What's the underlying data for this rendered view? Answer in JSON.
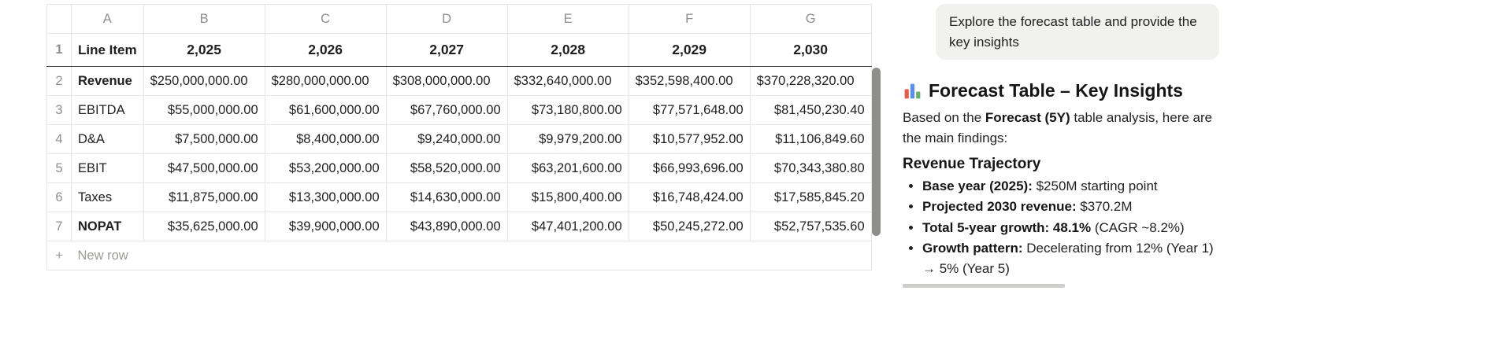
{
  "spreadsheet": {
    "column_letters": [
      "A",
      "B",
      "C",
      "D",
      "E",
      "F",
      "G"
    ],
    "rows": [
      {
        "num": "1",
        "cells": [
          "Line Item",
          "2,025",
          "2,026",
          "2,027",
          "2,028",
          "2,029",
          "2,030"
        ]
      },
      {
        "num": "2",
        "cells": [
          "Revenue",
          "$250,000,000.00",
          "$280,000,000.00",
          "$308,000,000.00",
          "$332,640,000.00",
          "$352,598,400.00",
          "$370,228,320.00"
        ]
      },
      {
        "num": "3",
        "cells": [
          "EBITDA",
          "$55,000,000.00",
          "$61,600,000.00",
          "$67,760,000.00",
          "$73,180,800.00",
          "$77,571,648.00",
          "$81,450,230.40"
        ]
      },
      {
        "num": "4",
        "cells": [
          "D&A",
          "$7,500,000.00",
          "$8,400,000.00",
          "$9,240,000.00",
          "$9,979,200.00",
          "$10,577,952.00",
          "$11,106,849.60"
        ]
      },
      {
        "num": "5",
        "cells": [
          "EBIT",
          "$47,500,000.00",
          "$53,200,000.00",
          "$58,520,000.00",
          "$63,201,600.00",
          "$66,993,696.00",
          "$70,343,380.80"
        ]
      },
      {
        "num": "6",
        "cells": [
          "Taxes",
          "$11,875,000.00",
          "$13,300,000.00",
          "$14,630,000.00",
          "$15,800,400.00",
          "$16,748,424.00",
          "$17,585,845.20"
        ]
      },
      {
        "num": "7",
        "cells": [
          "NOPAT",
          "$35,625,000.00",
          "$39,900,000.00",
          "$43,890,000.00",
          "$47,401,200.00",
          "$50,245,272.00",
          "$52,757,535.60"
        ]
      }
    ],
    "new_row": {
      "plus": "+",
      "placeholder": "New row"
    }
  },
  "chat": {
    "user_message": "Explore the forecast table and provide the key insights",
    "response": {
      "title_icon": "bar-chart",
      "title": "Forecast Table – Key Insights",
      "intro_pre": "Based on the ",
      "intro_bold": "Forecast (5Y)",
      "intro_post": " table analysis, here are the main findings:",
      "section_heading": "Revenue Trajectory",
      "bullets": [
        {
          "bold": "Base year (2025):",
          "rest": " $250M starting point"
        },
        {
          "bold": "Projected 2030 revenue:",
          "rest": " $370.2M"
        },
        {
          "bold": "Total 5-year growth: 48.1%",
          "rest": " (CAGR ~8.2%)"
        },
        {
          "bold": "Growth pattern:",
          "rest": " Decelerating from 12% (Year 1) → 5% (Year 5)"
        }
      ]
    }
  }
}
